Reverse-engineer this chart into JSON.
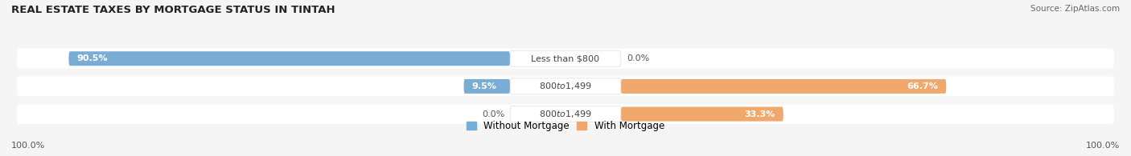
{
  "title": "REAL ESTATE TAXES BY MORTGAGE STATUS IN TINTAH",
  "source": "Source: ZipAtlas.com",
  "rows": [
    {
      "label": "Less than $800",
      "without": 90.5,
      "with": 0.0
    },
    {
      "label": "$800 to $1,499",
      "without": 9.5,
      "with": 66.7
    },
    {
      "label": "$800 to $1,499",
      "without": 0.0,
      "with": 33.3
    }
  ],
  "color_without": "#7aadd4",
  "color_with": "#f0a86c",
  "color_row_bg": "#e8e8e8",
  "color_bg": "#f5f5f5",
  "left_label": "100.0%",
  "right_label": "100.0%",
  "legend_without": "Without Mortgage",
  "legend_with": "With Mortgage",
  "label_fontsize": 8.0,
  "title_fontsize": 9.5,
  "source_fontsize": 7.5,
  "pct_fontsize": 8.0
}
